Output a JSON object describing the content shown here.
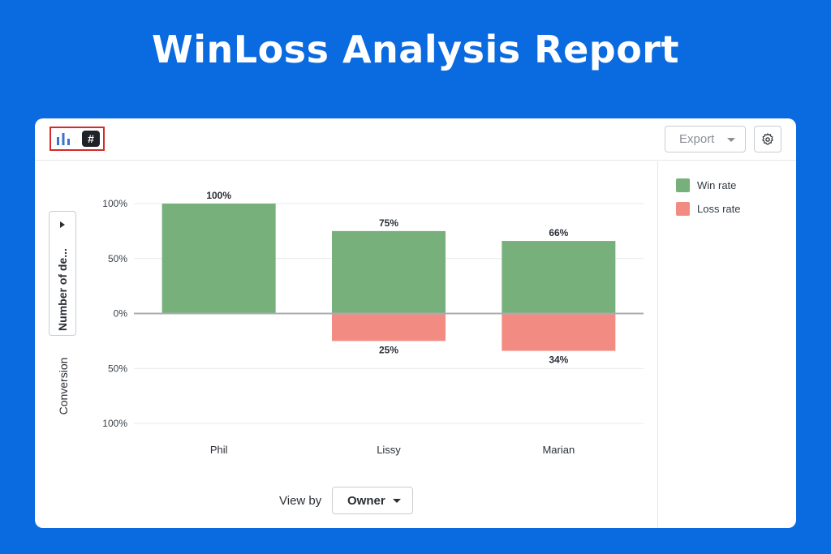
{
  "page": {
    "title": "WinLoss Analysis Report"
  },
  "toolbar": {
    "chart_view_icon": "bar-chart-icon",
    "number_view_label": "#",
    "export_label": "Export",
    "settings_icon": "gear-icon"
  },
  "y_axis": {
    "selector_label": "Number of de...",
    "title": "Conversion"
  },
  "view_by": {
    "label": "View by",
    "value": "Owner"
  },
  "legend": [
    {
      "label": "Win rate",
      "color": "#77b07a"
    },
    {
      "label": "Loss rate",
      "color": "#f28b82"
    }
  ],
  "chart_data": {
    "type": "bar",
    "stacked": "diverging",
    "categories": [
      "Phil",
      "Lissy",
      "Marian"
    ],
    "series": [
      {
        "name": "Win rate",
        "values": [
          100,
          75,
          66
        ],
        "color": "#77b07a"
      },
      {
        "name": "Loss rate",
        "values": [
          0,
          25,
          34
        ],
        "color": "#f28b82"
      }
    ],
    "y_ticks": [
      100,
      50,
      0,
      -50,
      -100
    ],
    "y_tick_labels": [
      "100%",
      "50%",
      "0%",
      "50%",
      "100%"
    ],
    "ylim": [
      -100,
      100
    ],
    "ylabel": "Conversion",
    "xlabel": "",
    "data_labels": {
      "Win rate": [
        "100%",
        "75%",
        "66%"
      ],
      "Loss rate": [
        "",
        "25%",
        "34%"
      ]
    },
    "grid": true,
    "legend_position": "right"
  }
}
